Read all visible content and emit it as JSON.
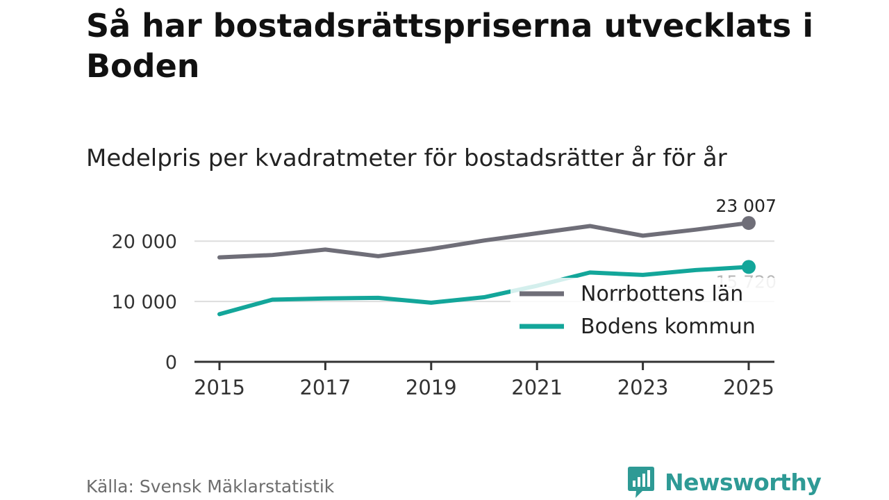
{
  "title": "Så har bostadsrättspriserna utvecklats i Boden",
  "subtitle": "Medelpris per kvadratmeter för bostadsrätter år för år",
  "source": "Källa: Svensk Mäklarstatistik",
  "brand": {
    "name": "Newsworthy",
    "icon": "newsworthy-logo-icon"
  },
  "colors": {
    "region": "#6f6e78",
    "municipality": "#13a69a",
    "grid": "#dddddd",
    "axis": "#333333"
  },
  "chart_data": {
    "type": "line",
    "x": [
      2015,
      2016,
      2017,
      2018,
      2019,
      2020,
      2021,
      2022,
      2023,
      2024,
      2025
    ],
    "x_ticks": [
      "2015",
      "2017",
      "2019",
      "2021",
      "2023",
      "2025"
    ],
    "x_tick_values": [
      2015,
      2017,
      2019,
      2021,
      2023,
      2025
    ],
    "y_ticks": [
      "0",
      "10 000",
      "20 000"
    ],
    "y_tick_values": [
      0,
      10000,
      20000
    ],
    "ylim": [
      0,
      23007
    ],
    "grid": true,
    "legend_position": "bottom-right",
    "series": [
      {
        "name": "Norrbottens län",
        "key": "region",
        "values": [
          17300,
          17700,
          18600,
          17500,
          18700,
          20100,
          21300,
          22500,
          20900,
          21900,
          23007
        ],
        "end_label": "23 007"
      },
      {
        "name": "Bodens kommun",
        "key": "municipality",
        "values": [
          7900,
          10300,
          10500,
          10600,
          9800,
          10700,
          12600,
          14800,
          14400,
          15200,
          15720
        ],
        "end_label": "15 720"
      }
    ]
  }
}
